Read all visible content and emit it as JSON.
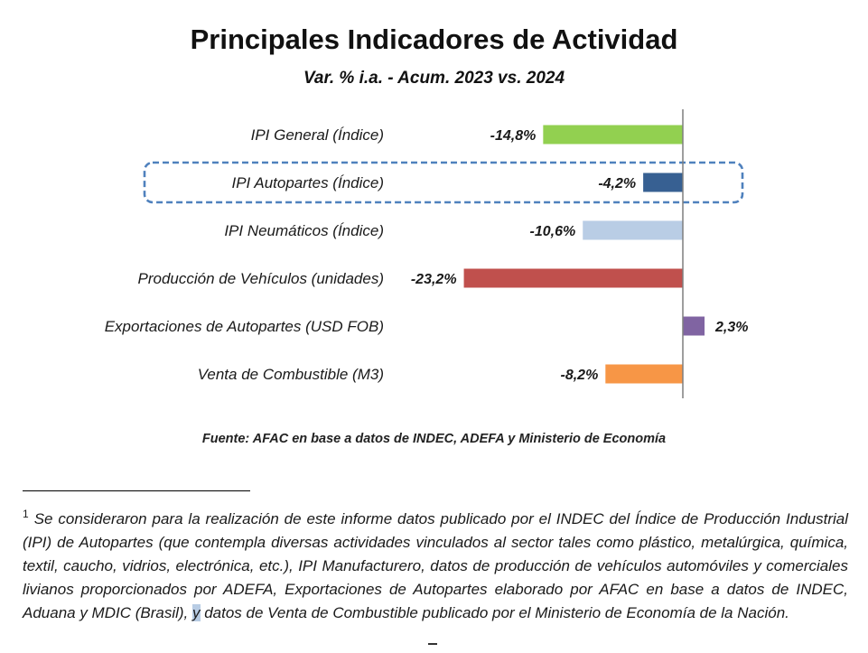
{
  "chart_data": {
    "type": "bar",
    "orientation": "horizontal",
    "title": "Principales Indicadores de Actividad",
    "subtitle": "Var. % i.a. - Acum. 2023 vs. 2024",
    "categories": [
      "IPI General (Índice)",
      "IPI Autopartes (Índice)",
      "IPI Neumáticos (Índice)",
      "Producción de Vehículos (unidades)",
      "Exportaciones de Autopartes (USD FOB)",
      "Venta de Combustible (M3)"
    ],
    "values": [
      -14.8,
      -4.2,
      -10.6,
      -23.2,
      2.3,
      -8.2
    ],
    "data_labels": [
      "-14,8%",
      "-4,2%",
      "-10,6%",
      "-23,2%",
      "2,3%",
      "-8,2%"
    ],
    "colors": [
      "#92d050",
      "#376092",
      "#b9cde5",
      "#c0504d",
      "#8064a2",
      "#f79646"
    ],
    "highlighted_category": "IPI Autopartes (Índice)",
    "highlight_style": "dashed box",
    "highlight_color": "#4f81bd",
    "axis_color": "#7f7f7f",
    "xlim": [
      -26,
      6
    ],
    "grid": false,
    "legend": "none"
  },
  "source": "Fuente: AFAC en base a datos de INDEC, ADEFA y Ministerio de Economía",
  "footnote": {
    "marker": "1",
    "text_before": "Se consideraron para la realización de este informe datos publicado por el INDEC del Índice de Producción Industrial (IPI) de Autopartes (que contempla diversas actividades vinculados al sector tales como plástico, metalúrgica, química, textil, caucho, vidrios, electrónica, etc.), IPI Manufacturero, datos de producción de vehículos automóviles y comerciales livianos proporcionados por ADEFA, Exportaciones de Autopartes elaborado por AFAC en base a datos de INDEC, Aduana y MDIC (Brasil), ",
    "highlighted": "y",
    "text_after": " datos de Venta de Combustible publicado por el Ministerio de Economía de la Nación."
  }
}
